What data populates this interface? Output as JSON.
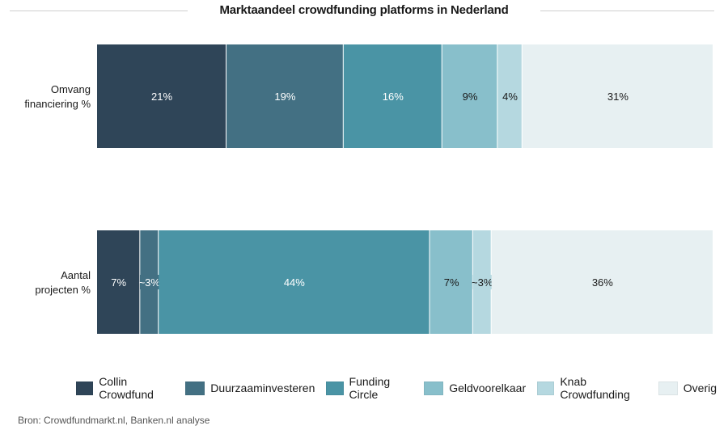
{
  "chart_data": {
    "type": "bar",
    "orientation": "horizontal",
    "stacked": true,
    "normalized": true,
    "title": "Marktaandeel crowdfunding platforms in Nederland",
    "xlabel": "",
    "ylabel": "",
    "xlim": [
      0,
      100
    ],
    "grid": false,
    "legend_position": "bottom",
    "categories": [
      "Omvang financiering %",
      "Aantal projecten %"
    ],
    "category_lines": [
      [
        "Omvang",
        "financiering %"
      ],
      [
        "Aantal",
        "projecten %"
      ]
    ],
    "series": [
      {
        "name": "Collin Crowdfund",
        "color": "#2f4558",
        "label_color": "#ffffff",
        "values": [
          21,
          7
        ],
        "labels": [
          "21%",
          "7%"
        ]
      },
      {
        "name": "Duurzaaminvesteren",
        "color": "#437083",
        "label_color": "#ffffff",
        "values": [
          19,
          3
        ],
        "labels": [
          "19%",
          "~3%"
        ]
      },
      {
        "name": "Funding Circle",
        "color": "#4a94a5",
        "label_color": "#ffffff",
        "values": [
          16,
          44
        ],
        "labels": [
          "16%",
          "44%"
        ]
      },
      {
        "name": "Geldvoorelkaar",
        "color": "#88bfcb",
        "label_color": "#1a1a1a",
        "values": [
          9,
          7
        ],
        "labels": [
          "9%",
          "7%"
        ]
      },
      {
        "name": "Knab Crowdfunding",
        "color": "#b5d8e0",
        "label_color": "#1a1a1a",
        "values": [
          4,
          3
        ],
        "labels": [
          "4%",
          "~3%"
        ]
      },
      {
        "name": "Overig",
        "color": "#e7f0f2",
        "label_color": "#1a1a1a",
        "values": [
          31,
          36
        ],
        "labels": [
          "31%",
          "36%"
        ]
      }
    ],
    "source": "Bron: Crowdfundmarkt.nl, Banken.nl analyse"
  }
}
